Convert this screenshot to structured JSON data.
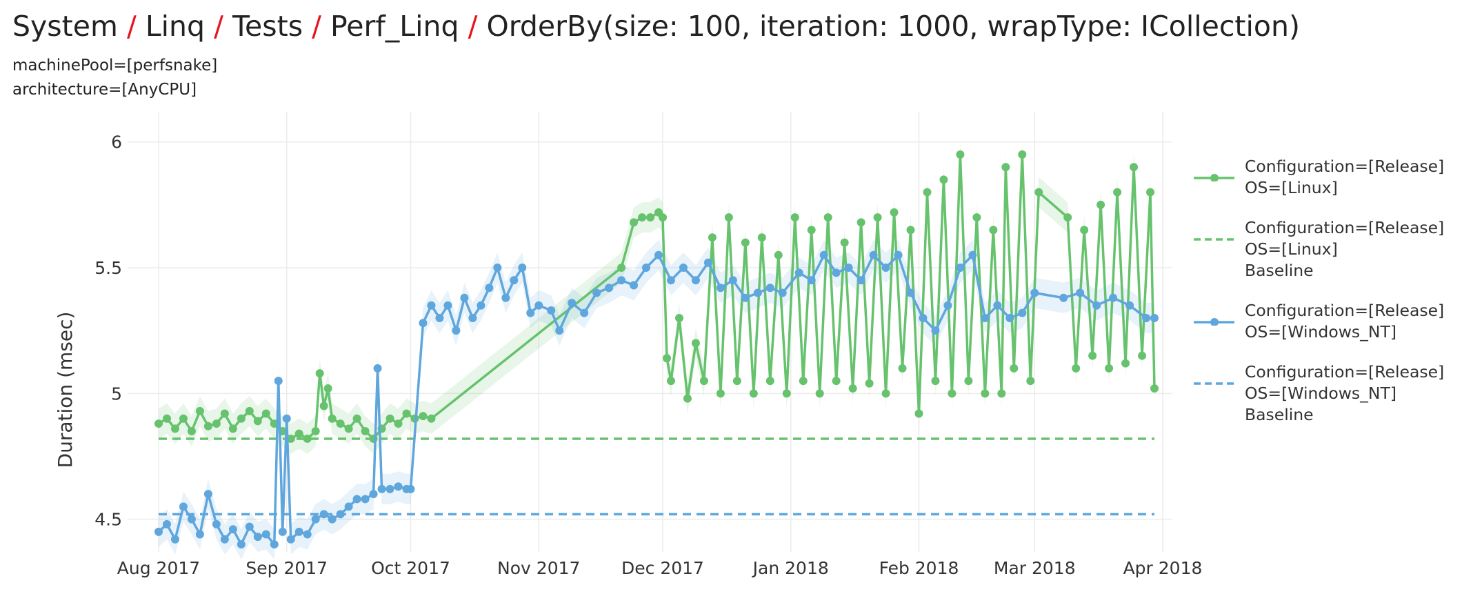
{
  "title": {
    "crumbs": [
      "System",
      "Linq",
      "Tests",
      "Perf_Linq",
      "OrderBy(size: 100, iteration: 1000, wrapType: ICollection)"
    ],
    "separator": "/"
  },
  "filters": [
    "machinePool=[perfsnake]",
    "architecture=[AnyCPU]"
  ],
  "chart_data": {
    "type": "line",
    "title": "System / Linq / Tests / Perf_Linq / OrderBy(size: 100, iteration: 1000, wrapType: ICollection)",
    "ylabel": "Duration (msec)",
    "xlabel": "",
    "xlim": [
      "2017-08-01",
      "2018-04-01"
    ],
    "ylim": [
      4.37,
      6.12
    ],
    "x_ticks": [
      {
        "date": "2017-08-01",
        "label": "Aug 2017"
      },
      {
        "date": "2017-09-01",
        "label": "Sep 2017"
      },
      {
        "date": "2017-10-01",
        "label": "Oct 2017"
      },
      {
        "date": "2017-11-01",
        "label": "Nov 2017"
      },
      {
        "date": "2017-12-01",
        "label": "Dec 2017"
      },
      {
        "date": "2018-01-01",
        "label": "Jan 2018"
      },
      {
        "date": "2018-02-01",
        "label": "Feb 2018"
      },
      {
        "date": "2018-03-01",
        "label": "Mar 2018"
      },
      {
        "date": "2018-04-01",
        "label": "Apr 2018"
      }
    ],
    "y_ticks": [
      {
        "value": 4.5,
        "label": "4.5"
      },
      {
        "value": 5,
        "label": "5"
      },
      {
        "value": 5.5,
        "label": "5.5"
      },
      {
        "value": 6,
        "label": "6"
      }
    ],
    "grid": true,
    "legend_position": "right",
    "series": [
      {
        "name": "Configuration=[Release] OS=[Linux]",
        "legend_lines": [
          "Configuration=[Release]",
          "OS=[Linux]"
        ],
        "color": "#66c26c",
        "style": "line+markers",
        "points": [
          [
            "2017-08-01",
            4.88
          ],
          [
            "2017-08-03",
            4.9
          ],
          [
            "2017-08-05",
            4.86
          ],
          [
            "2017-08-07",
            4.9
          ],
          [
            "2017-08-09",
            4.85
          ],
          [
            "2017-08-11",
            4.93
          ],
          [
            "2017-08-13",
            4.87
          ],
          [
            "2017-08-15",
            4.88
          ],
          [
            "2017-08-17",
            4.92
          ],
          [
            "2017-08-19",
            4.86
          ],
          [
            "2017-08-21",
            4.9
          ],
          [
            "2017-08-23",
            4.93
          ],
          [
            "2017-08-25",
            4.89
          ],
          [
            "2017-08-27",
            4.92
          ],
          [
            "2017-08-29",
            4.88
          ],
          [
            "2017-08-31",
            4.85
          ],
          [
            "2017-09-02",
            4.82
          ],
          [
            "2017-09-04",
            4.84
          ],
          [
            "2017-09-06",
            4.82
          ],
          [
            "2017-09-08",
            4.85
          ],
          [
            "2017-09-09",
            5.08
          ],
          [
            "2017-09-10",
            4.95
          ],
          [
            "2017-09-11",
            5.02
          ],
          [
            "2017-09-12",
            4.9
          ],
          [
            "2017-09-14",
            4.88
          ],
          [
            "2017-09-16",
            4.86
          ],
          [
            "2017-09-18",
            4.9
          ],
          [
            "2017-09-20",
            4.85
          ],
          [
            "2017-09-22",
            4.82
          ],
          [
            "2017-09-24",
            4.86
          ],
          [
            "2017-09-26",
            4.9
          ],
          [
            "2017-09-28",
            4.88
          ],
          [
            "2017-09-30",
            4.92
          ],
          [
            "2017-10-02",
            4.9
          ],
          [
            "2017-10-04",
            4.91
          ],
          [
            "2017-10-06",
            4.9
          ],
          [
            "2017-11-21",
            5.5
          ],
          [
            "2017-11-24",
            5.68
          ],
          [
            "2017-11-26",
            5.7
          ],
          [
            "2017-11-28",
            5.7
          ],
          [
            "2017-11-30",
            5.72
          ],
          [
            "2017-12-01",
            5.7
          ],
          [
            "2017-12-02",
            5.14
          ],
          [
            "2017-12-03",
            5.05
          ],
          [
            "2017-12-05",
            5.3
          ],
          [
            "2017-12-07",
            4.98
          ],
          [
            "2017-12-09",
            5.2
          ],
          [
            "2017-12-11",
            5.05
          ],
          [
            "2017-12-13",
            5.62
          ],
          [
            "2017-12-15",
            5.0
          ],
          [
            "2017-12-17",
            5.7
          ],
          [
            "2017-12-19",
            5.05
          ],
          [
            "2017-12-21",
            5.6
          ],
          [
            "2017-12-23",
            5.0
          ],
          [
            "2017-12-25",
            5.62
          ],
          [
            "2017-12-27",
            5.05
          ],
          [
            "2017-12-29",
            5.55
          ],
          [
            "2017-12-31",
            5.0
          ],
          [
            "2018-01-02",
            5.7
          ],
          [
            "2018-01-04",
            5.05
          ],
          [
            "2018-01-06",
            5.65
          ],
          [
            "2018-01-08",
            5.0
          ],
          [
            "2018-01-10",
            5.7
          ],
          [
            "2018-01-12",
            5.05
          ],
          [
            "2018-01-14",
            5.6
          ],
          [
            "2018-01-16",
            5.02
          ],
          [
            "2018-01-18",
            5.68
          ],
          [
            "2018-01-20",
            5.04
          ],
          [
            "2018-01-22",
            5.7
          ],
          [
            "2018-01-24",
            5.0
          ],
          [
            "2018-01-26",
            5.72
          ],
          [
            "2018-01-28",
            5.1
          ],
          [
            "2018-01-30",
            5.65
          ],
          [
            "2018-02-01",
            4.92
          ],
          [
            "2018-02-03",
            5.8
          ],
          [
            "2018-02-05",
            5.05
          ],
          [
            "2018-02-07",
            5.85
          ],
          [
            "2018-02-09",
            5.0
          ],
          [
            "2018-02-11",
            5.95
          ],
          [
            "2018-02-13",
            5.05
          ],
          [
            "2018-02-15",
            5.7
          ],
          [
            "2018-02-17",
            5.0
          ],
          [
            "2018-02-19",
            5.65
          ],
          [
            "2018-02-21",
            5.0
          ],
          [
            "2018-02-22",
            5.9
          ],
          [
            "2018-02-24",
            5.1
          ],
          [
            "2018-02-26",
            5.95
          ],
          [
            "2018-02-28",
            5.05
          ],
          [
            "2018-03-02",
            5.8
          ],
          [
            "2018-03-09",
            5.7
          ],
          [
            "2018-03-11",
            5.1
          ],
          [
            "2018-03-13",
            5.65
          ],
          [
            "2018-03-15",
            5.15
          ],
          [
            "2018-03-17",
            5.75
          ],
          [
            "2018-03-19",
            5.1
          ],
          [
            "2018-03-21",
            5.8
          ],
          [
            "2018-03-23",
            5.12
          ],
          [
            "2018-03-25",
            5.9
          ],
          [
            "2018-03-27",
            5.15
          ],
          [
            "2018-03-29",
            5.8
          ],
          [
            "2018-03-30",
            5.02
          ]
        ]
      },
      {
        "name": "Configuration=[Release] OS=[Linux] Baseline",
        "legend_lines": [
          "Configuration=[Release]",
          "OS=[Linux]",
          "Baseline"
        ],
        "color": "#66c26c",
        "style": "dashed",
        "points": [
          [
            "2017-08-01",
            4.82
          ],
          [
            "2018-03-30",
            4.82
          ]
        ]
      },
      {
        "name": "Configuration=[Release] OS=[Windows_NT]",
        "legend_lines": [
          "Configuration=[Release]",
          "OS=[Windows_NT]"
        ],
        "color": "#5fa6dd",
        "style": "line+markers",
        "points": [
          [
            "2017-08-01",
            4.45
          ],
          [
            "2017-08-03",
            4.48
          ],
          [
            "2017-08-05",
            4.42
          ],
          [
            "2017-08-07",
            4.55
          ],
          [
            "2017-08-09",
            4.5
          ],
          [
            "2017-08-11",
            4.44
          ],
          [
            "2017-08-13",
            4.6
          ],
          [
            "2017-08-15",
            4.48
          ],
          [
            "2017-08-17",
            4.42
          ],
          [
            "2017-08-19",
            4.46
          ],
          [
            "2017-08-21",
            4.4
          ],
          [
            "2017-08-23",
            4.47
          ],
          [
            "2017-08-25",
            4.43
          ],
          [
            "2017-08-27",
            4.44
          ],
          [
            "2017-08-29",
            4.4
          ],
          [
            "2017-08-30",
            5.05
          ],
          [
            "2017-08-31",
            4.45
          ],
          [
            "2017-09-01",
            4.9
          ],
          [
            "2017-09-02",
            4.42
          ],
          [
            "2017-09-04",
            4.45
          ],
          [
            "2017-09-06",
            4.44
          ],
          [
            "2017-09-08",
            4.5
          ],
          [
            "2017-09-10",
            4.52
          ],
          [
            "2017-09-12",
            4.5
          ],
          [
            "2017-09-14",
            4.52
          ],
          [
            "2017-09-16",
            4.55
          ],
          [
            "2017-09-18",
            4.58
          ],
          [
            "2017-09-20",
            4.58
          ],
          [
            "2017-09-22",
            4.6
          ],
          [
            "2017-09-23",
            5.1
          ],
          [
            "2017-09-24",
            4.62
          ],
          [
            "2017-09-26",
            4.62
          ],
          [
            "2017-09-28",
            4.63
          ],
          [
            "2017-09-30",
            4.62
          ],
          [
            "2017-10-01",
            4.62
          ],
          [
            "2017-10-04",
            5.28
          ],
          [
            "2017-10-06",
            5.35
          ],
          [
            "2017-10-08",
            5.3
          ],
          [
            "2017-10-10",
            5.35
          ],
          [
            "2017-10-12",
            5.25
          ],
          [
            "2017-10-14",
            5.38
          ],
          [
            "2017-10-16",
            5.3
          ],
          [
            "2017-10-18",
            5.35
          ],
          [
            "2017-10-20",
            5.42
          ],
          [
            "2017-10-22",
            5.5
          ],
          [
            "2017-10-24",
            5.38
          ],
          [
            "2017-10-26",
            5.45
          ],
          [
            "2017-10-28",
            5.5
          ],
          [
            "2017-10-30",
            5.32
          ],
          [
            "2017-11-01",
            5.35
          ],
          [
            "2017-11-04",
            5.33
          ],
          [
            "2017-11-06",
            5.25
          ],
          [
            "2017-11-09",
            5.36
          ],
          [
            "2017-11-12",
            5.32
          ],
          [
            "2017-11-15",
            5.4
          ],
          [
            "2017-11-18",
            5.42
          ],
          [
            "2017-11-21",
            5.45
          ],
          [
            "2017-11-24",
            5.43
          ],
          [
            "2017-11-27",
            5.5
          ],
          [
            "2017-11-30",
            5.55
          ],
          [
            "2017-12-03",
            5.45
          ],
          [
            "2017-12-06",
            5.5
          ],
          [
            "2017-12-09",
            5.45
          ],
          [
            "2017-12-12",
            5.52
          ],
          [
            "2017-12-15",
            5.42
          ],
          [
            "2017-12-18",
            5.45
          ],
          [
            "2017-12-21",
            5.38
          ],
          [
            "2017-12-24",
            5.4
          ],
          [
            "2017-12-27",
            5.42
          ],
          [
            "2017-12-30",
            5.4
          ],
          [
            "2018-01-03",
            5.48
          ],
          [
            "2018-01-06",
            5.45
          ],
          [
            "2018-01-09",
            5.55
          ],
          [
            "2018-01-12",
            5.48
          ],
          [
            "2018-01-15",
            5.5
          ],
          [
            "2018-01-18",
            5.45
          ],
          [
            "2018-01-21",
            5.55
          ],
          [
            "2018-01-24",
            5.5
          ],
          [
            "2018-01-27",
            5.55
          ],
          [
            "2018-01-30",
            5.4
          ],
          [
            "2018-02-02",
            5.3
          ],
          [
            "2018-02-05",
            5.25
          ],
          [
            "2018-02-08",
            5.35
          ],
          [
            "2018-02-11",
            5.5
          ],
          [
            "2018-02-14",
            5.55
          ],
          [
            "2018-02-17",
            5.3
          ],
          [
            "2018-02-20",
            5.35
          ],
          [
            "2018-02-23",
            5.3
          ],
          [
            "2018-02-26",
            5.32
          ],
          [
            "2018-03-01",
            5.4
          ],
          [
            "2018-03-08",
            5.38
          ],
          [
            "2018-03-12",
            5.4
          ],
          [
            "2018-03-16",
            5.35
          ],
          [
            "2018-03-20",
            5.38
          ],
          [
            "2018-03-24",
            5.35
          ],
          [
            "2018-03-28",
            5.3
          ],
          [
            "2018-03-30",
            5.3
          ]
        ]
      },
      {
        "name": "Configuration=[Release] OS=[Windows_NT] Baseline",
        "legend_lines": [
          "Configuration=[Release]",
          "OS=[Windows_NT]",
          "Baseline"
        ],
        "color": "#5fa6dd",
        "style": "dashed",
        "points": [
          [
            "2017-08-01",
            4.52
          ],
          [
            "2018-03-30",
            4.52
          ]
        ]
      }
    ]
  }
}
